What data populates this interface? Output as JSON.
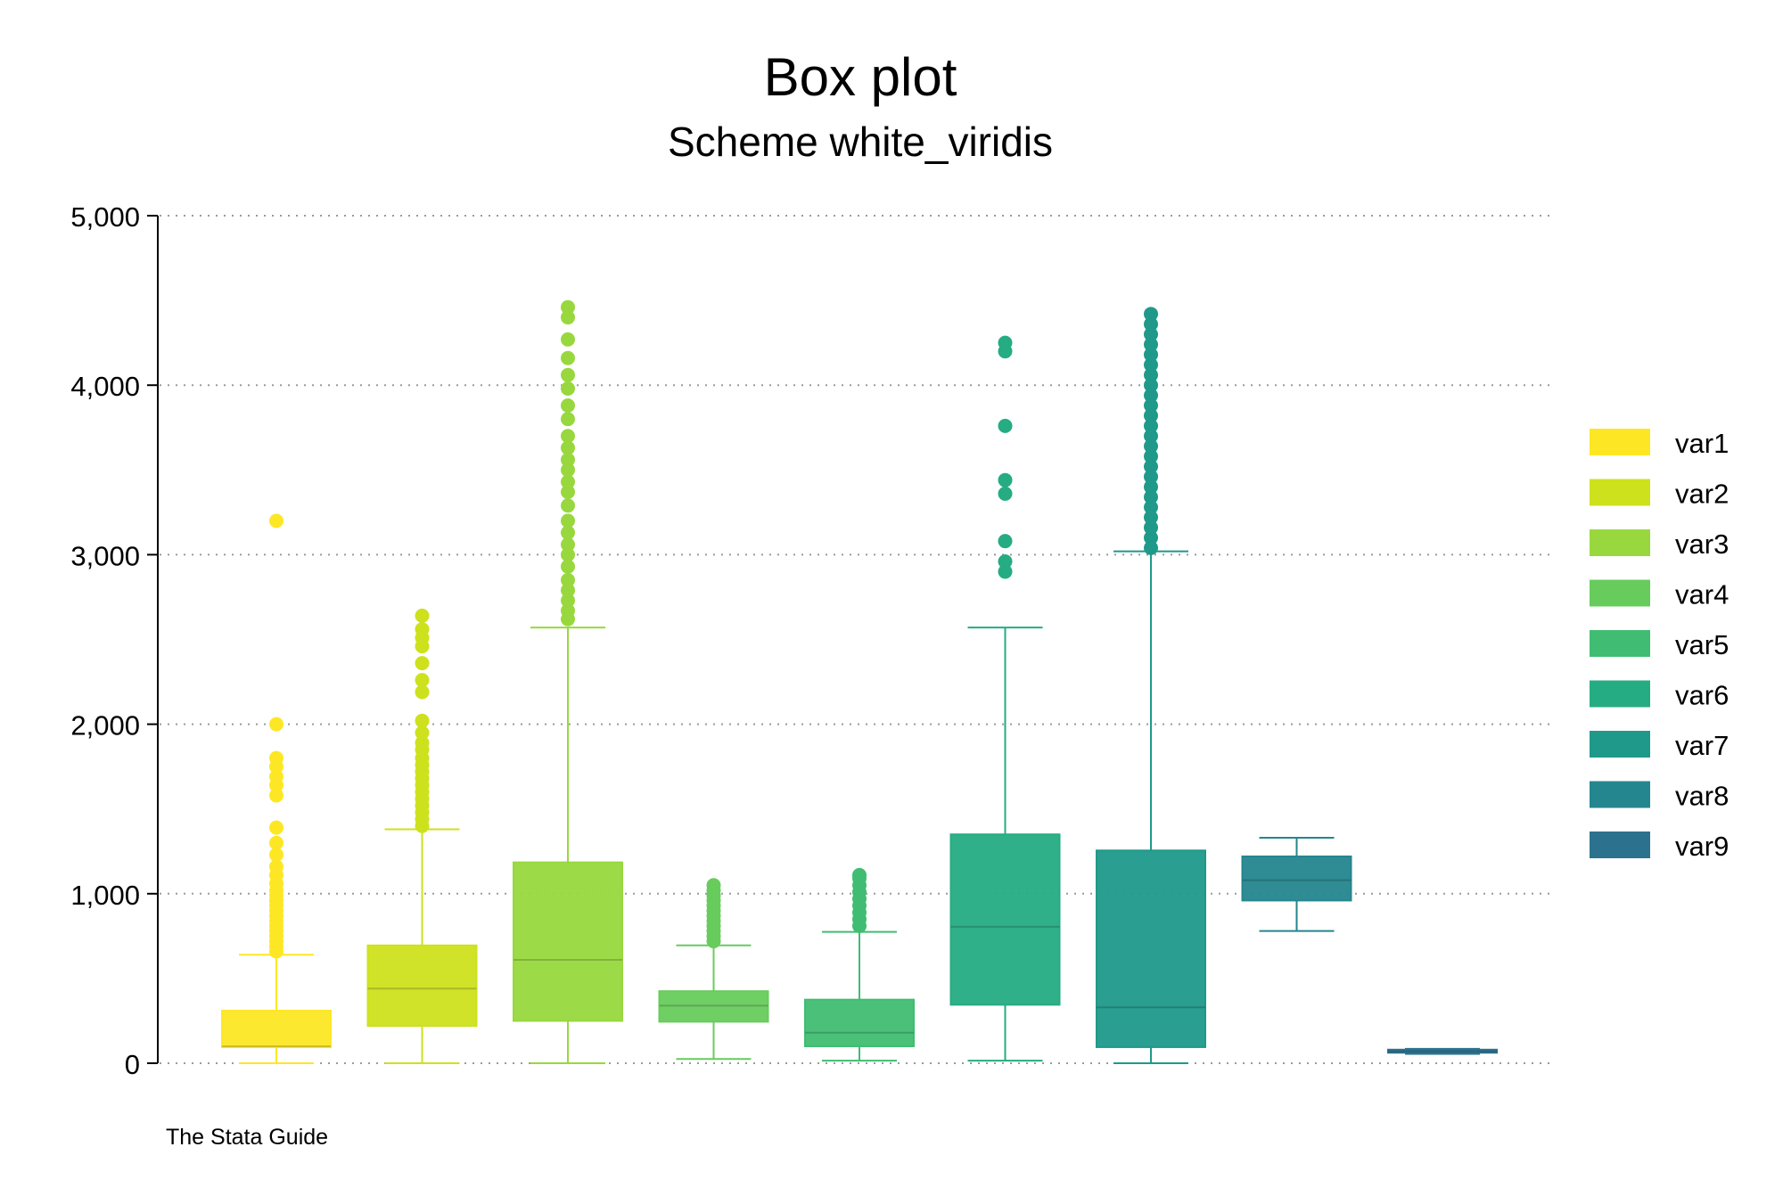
{
  "chart_data": {
    "type": "box",
    "title": "Box plot",
    "subtitle": "Scheme white_viridis",
    "caption": "The Stata Guide",
    "xlabel": "",
    "ylabel": "",
    "ylim": [
      0,
      5000
    ],
    "yticks": [
      0,
      1000,
      2000,
      3000,
      4000,
      5000
    ],
    "ytick_labels": [
      "0",
      "1,000",
      "2,000",
      "3,000",
      "4,000",
      "5,000"
    ],
    "grid": "horizontal dotted",
    "legend_position": "right",
    "series": [
      {
        "name": "var1",
        "color": "#fde725",
        "whisker_low": 0,
        "q1": 95,
        "median": 100,
        "q3": 310,
        "whisker_high": 640,
        "outliers": [
          660,
          690,
          720,
          750,
          780,
          810,
          840,
          870,
          900,
          930,
          960,
          990,
          1020,
          1060,
          1110,
          1160,
          1230,
          1300,
          1390,
          1580,
          1640,
          1690,
          1750,
          1800,
          2000,
          3200
        ]
      },
      {
        "name": "var2",
        "color": "#cde11d",
        "whisker_low": 0,
        "q1": 220,
        "median": 440,
        "q3": 695,
        "whisker_high": 1380,
        "outliers": [
          1400,
          1440,
          1480,
          1520,
          1560,
          1600,
          1640,
          1680,
          1720,
          1760,
          1800,
          1850,
          1890,
          1950,
          2020,
          2190,
          2260,
          2360,
          2460,
          2510,
          2560,
          2640
        ]
      },
      {
        "name": "var3",
        "color": "#98d83e",
        "whisker_low": 0,
        "q1": 250,
        "median": 610,
        "q3": 1185,
        "whisker_high": 2570,
        "outliers": [
          2620,
          2670,
          2730,
          2790,
          2850,
          2930,
          3000,
          3060,
          3130,
          3200,
          3290,
          3370,
          3430,
          3500,
          3560,
          3630,
          3700,
          3800,
          3880,
          3980,
          4060,
          4160,
          4270,
          4400,
          4460
        ]
      },
      {
        "name": "var4",
        "color": "#67cc5c",
        "whisker_low": 25,
        "q1": 245,
        "median": 340,
        "q3": 425,
        "whisker_high": 695,
        "outliers": [
          720,
          750,
          780,
          810,
          840,
          870,
          900,
          930,
          960,
          990,
          1020,
          1050
        ]
      },
      {
        "name": "var5",
        "color": "#40bd72",
        "whisker_low": 15,
        "q1": 100,
        "median": 180,
        "q3": 375,
        "whisker_high": 775,
        "outliers": [
          810,
          850,
          890,
          930,
          970,
          1010,
          1050,
          1090,
          1110
        ]
      },
      {
        "name": "var6",
        "color": "#25ac82",
        "whisker_low": 15,
        "q1": 345,
        "median": 805,
        "q3": 1350,
        "whisker_high": 2570,
        "outliers": [
          2900,
          2960,
          3080,
          3360,
          3440,
          3760,
          4200,
          4250
        ]
      },
      {
        "name": "var7",
        "color": "#1f998a",
        "whisker_low": 0,
        "q1": 95,
        "median": 330,
        "q3": 1255,
        "whisker_high": 3020,
        "outliers": [
          3040,
          3100,
          3160,
          3220,
          3280,
          3340,
          3400,
          3460,
          3520,
          3580,
          3640,
          3700,
          3760,
          3820,
          3880,
          3940,
          4000,
          4060,
          4120,
          4180,
          4240,
          4300,
          4360,
          4420
        ]
      },
      {
        "name": "var8",
        "color": "#24868e",
        "whisker_low": 780,
        "q1": 960,
        "median": 1080,
        "q3": 1220,
        "whisker_high": 1330,
        "outliers": []
      },
      {
        "name": "var9",
        "color": "#2c728e",
        "whisker_low": 55,
        "q1": 62,
        "median": 70,
        "q3": 80,
        "whisker_high": 85,
        "outliers": []
      }
    ]
  }
}
